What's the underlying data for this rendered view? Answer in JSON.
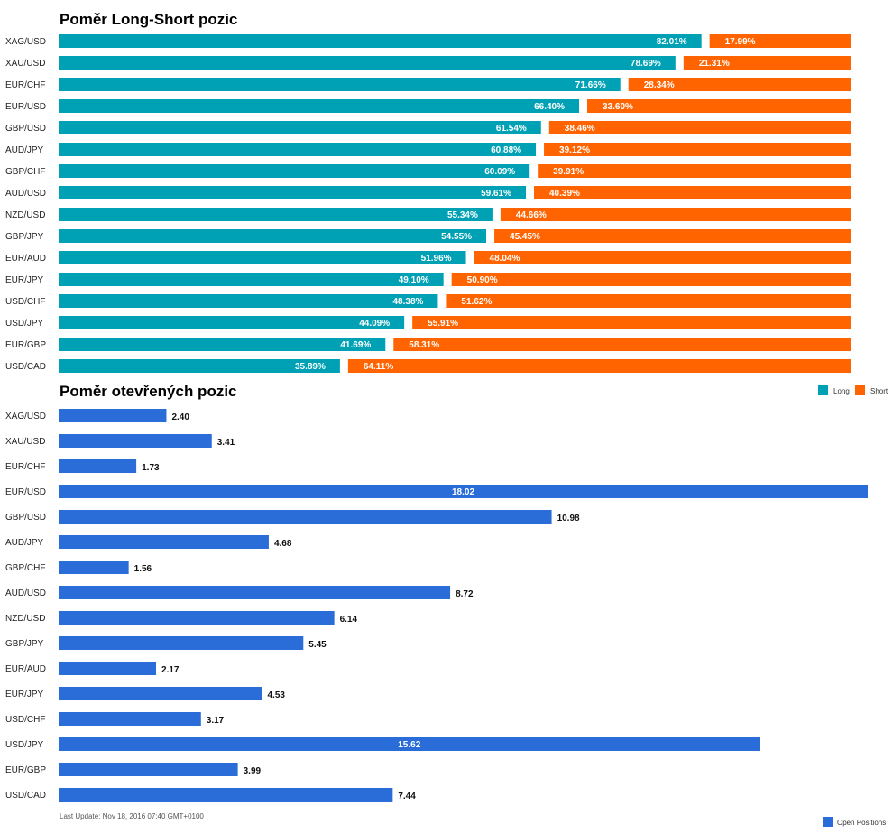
{
  "chart_data": [
    {
      "type": "bar",
      "stacked": true,
      "orientation": "horizontal",
      "title": "Poměr Long-Short pozic",
      "categories": [
        "XAG/USD",
        "XAU/USD",
        "EUR/CHF",
        "EUR/USD",
        "GBP/USD",
        "AUD/JPY",
        "GBP/CHF",
        "AUD/USD",
        "NZD/USD",
        "GBP/JPY",
        "EUR/AUD",
        "EUR/JPY",
        "USD/CHF",
        "USD/JPY",
        "EUR/GBP",
        "USD/CAD"
      ],
      "series": [
        {
          "name": "Long",
          "color": "#00a1b5",
          "values": [
            82.01,
            78.69,
            71.66,
            66.4,
            61.54,
            60.88,
            60.09,
            59.61,
            55.34,
            54.55,
            51.96,
            49.1,
            48.38,
            44.09,
            41.69,
            35.89
          ],
          "labels": [
            "82.01%",
            "78.69%",
            "71.66%",
            "66.40%",
            "61.54%",
            "60.88%",
            "60.09%",
            "59.61%",
            "55.34%",
            "54.55%",
            "51.96%",
            "49.10%",
            "48.38%",
            "44.09%",
            "41.69%",
            "35.89%"
          ]
        },
        {
          "name": "Short",
          "color": "#ff6400",
          "values": [
            17.99,
            21.31,
            28.34,
            33.6,
            38.46,
            39.12,
            39.91,
            40.39,
            44.66,
            45.45,
            48.04,
            50.9,
            51.62,
            55.91,
            58.31,
            64.11
          ],
          "labels": [
            "17.99%",
            "21.31%",
            "28.34%",
            "33.60%",
            "38.46%",
            "39.12%",
            "39.91%",
            "40.39%",
            "44.66%",
            "45.45%",
            "48.04%",
            "50.90%",
            "51.62%",
            "55.91%",
            "58.31%",
            "64.11%"
          ]
        }
      ],
      "xlim": [
        0,
        100
      ],
      "legend": "top-right"
    },
    {
      "type": "bar",
      "orientation": "horizontal",
      "title": "Poměr otevřených pozic",
      "categories": [
        "XAG/USD",
        "XAU/USD",
        "EUR/CHF",
        "EUR/USD",
        "GBP/USD",
        "AUD/JPY",
        "GBP/CHF",
        "AUD/USD",
        "NZD/USD",
        "GBP/JPY",
        "EUR/AUD",
        "EUR/JPY",
        "USD/CHF",
        "USD/JPY",
        "EUR/GBP",
        "USD/CAD"
      ],
      "series": [
        {
          "name": "Open Positions",
          "color": "#2a6dd8",
          "values": [
            2.4,
            3.41,
            1.73,
            18.02,
            10.98,
            4.68,
            1.56,
            8.72,
            6.14,
            5.45,
            2.17,
            4.53,
            3.17,
            15.62,
            3.99,
            7.44
          ],
          "labels": [
            "2.40",
            "3.41",
            "1.73",
            "18.02",
            "10.98",
            "4.68",
            "1.56",
            "8.72",
            "6.14",
            "5.45",
            "2.17",
            "4.53",
            "3.17",
            "15.62",
            "3.99",
            "7.44"
          ]
        }
      ],
      "xlim": [
        0,
        18.02
      ],
      "legend": "bottom-right"
    }
  ],
  "footer": "Last Update: Nov 18, 2016 07:40 GMT+0100"
}
